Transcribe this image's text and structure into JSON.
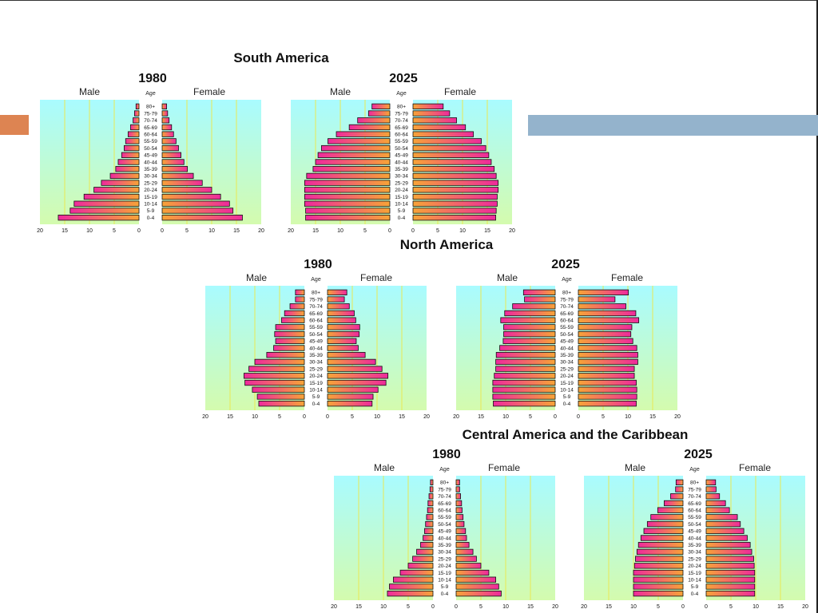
{
  "slide": {
    "accent_left_color": "#dd8452",
    "accent_right_color": "#94b3cc"
  },
  "labels": {
    "male": "Male",
    "female": "Female",
    "age": "Age"
  },
  "age_groups": [
    "0-4",
    "5-9",
    "10-14",
    "15-19",
    "20-24",
    "25-29",
    "30-34",
    "35-39",
    "40-44",
    "45-49",
    "50-54",
    "55-59",
    "60-64",
    "65-69",
    "70-74",
    "75-79",
    "80+"
  ],
  "colors": {
    "plot_top": "#a9fbff",
    "plot_bottom": "#d4fbae",
    "bar_outer": "#ee2a9c",
    "bar_inner": "#f7a437",
    "grid": "#e9e954"
  },
  "regions": [
    {
      "title": "South America"
    },
    {
      "title": "North America"
    },
    {
      "title": "Central America and the Caribbean"
    }
  ],
  "chart_data": [
    {
      "type": "bar",
      "region": "South America",
      "year": "1980",
      "categories": [
        "0-4",
        "5-9",
        "10-14",
        "15-19",
        "20-24",
        "25-29",
        "30-34",
        "35-39",
        "40-44",
        "45-49",
        "50-54",
        "55-59",
        "60-64",
        "65-69",
        "70-74",
        "75-79",
        "80+"
      ],
      "series": [
        {
          "name": "Male",
          "values": [
            16.3,
            13.9,
            13.1,
            11.1,
            9.1,
            7.6,
            5.8,
            4.7,
            4.2,
            3.5,
            3.0,
            2.7,
            2.2,
            1.7,
            1.2,
            0.9,
            0.6
          ]
        },
        {
          "name": "Female",
          "values": [
            16.2,
            14.3,
            13.6,
            11.8,
            10.0,
            8.1,
            6.3,
            5.1,
            4.4,
            3.8,
            3.3,
            2.8,
            2.3,
            1.9,
            1.4,
            1.1,
            0.9
          ]
        }
      ],
      "xlim": [
        0,
        20
      ],
      "x_ticks": [
        "20",
        "15",
        "10",
        "5",
        "0",
        "0",
        "5",
        "10",
        "15",
        "20"
      ]
    },
    {
      "type": "bar",
      "region": "South America",
      "year": "2025",
      "categories": [
        "0-4",
        "5-9",
        "10-14",
        "15-19",
        "20-24",
        "25-29",
        "30-34",
        "35-39",
        "40-44",
        "45-49",
        "50-54",
        "55-59",
        "60-64",
        "65-69",
        "70-74",
        "75-79",
        "80+"
      ],
      "series": [
        {
          "name": "Male",
          "values": [
            17.0,
            17.0,
            17.2,
            17.2,
            17.2,
            17.2,
            16.8,
            15.5,
            15.0,
            14.5,
            13.8,
            12.5,
            10.8,
            8.2,
            6.5,
            4.3,
            3.6
          ]
        },
        {
          "name": "Female",
          "values": [
            16.7,
            16.8,
            17.0,
            17.0,
            17.2,
            17.2,
            16.8,
            16.4,
            15.8,
            15.3,
            14.7,
            13.8,
            12.2,
            10.6,
            8.8,
            7.4,
            6.1
          ]
        }
      ],
      "xlim": [
        0,
        20
      ],
      "x_ticks": [
        "20",
        "15",
        "10",
        "5",
        "0",
        "0",
        "5",
        "10",
        "15",
        "20"
      ]
    },
    {
      "type": "bar",
      "region": "North America",
      "year": "1980",
      "categories": [
        "0-4",
        "5-9",
        "10-14",
        "15-19",
        "20-24",
        "25-29",
        "30-34",
        "35-39",
        "40-44",
        "45-49",
        "50-54",
        "55-59",
        "60-64",
        "65-69",
        "70-74",
        "75-79",
        "80+"
      ],
      "series": [
        {
          "name": "Male",
          "values": [
            9.2,
            9.5,
            10.5,
            12.0,
            12.2,
            11.2,
            10.0,
            7.6,
            6.2,
            5.8,
            6.0,
            5.8,
            4.6,
            4.0,
            2.9,
            1.8,
            1.8
          ]
        },
        {
          "name": "Female",
          "values": [
            9.0,
            9.2,
            10.2,
            11.8,
            12.2,
            11.0,
            9.7,
            7.6,
            6.2,
            5.8,
            6.4,
            6.5,
            5.7,
            5.4,
            4.4,
            3.4,
            3.9
          ]
        }
      ],
      "xlim": [
        0,
        20
      ],
      "x_ticks": [
        "20",
        "15",
        "10",
        "5",
        "0",
        "0",
        "5",
        "10",
        "15",
        "20"
      ]
    },
    {
      "type": "bar",
      "region": "North America",
      "year": "2025",
      "categories": [
        "0-4",
        "5-9",
        "10-14",
        "15-19",
        "20-24",
        "25-29",
        "30-34",
        "35-39",
        "40-44",
        "45-49",
        "50-54",
        "55-59",
        "60-64",
        "65-69",
        "70-74",
        "75-79",
        "80+"
      ],
      "series": [
        {
          "name": "Male",
          "values": [
            12.5,
            12.6,
            12.6,
            12.6,
            12.3,
            12.0,
            12.0,
            11.9,
            11.2,
            10.5,
            10.4,
            10.4,
            11.0,
            10.2,
            8.6,
            6.2,
            6.4
          ]
        },
        {
          "name": "Female",
          "values": [
            11.7,
            11.8,
            11.8,
            11.7,
            11.3,
            11.3,
            12.0,
            12.0,
            11.8,
            11.0,
            10.6,
            10.8,
            12.2,
            11.6,
            9.6,
            7.4,
            10.1
          ]
        }
      ],
      "xlim": [
        0,
        20
      ],
      "x_ticks": [
        "20",
        "15",
        "10",
        "5",
        "0",
        "0",
        "5",
        "10",
        "15",
        "20"
      ]
    },
    {
      "type": "bar",
      "region": "Central America and the Caribbean",
      "year": "1980",
      "categories": [
        "0-4",
        "5-9",
        "10-14",
        "15-19",
        "20-24",
        "25-29",
        "30-34",
        "35-39",
        "40-44",
        "45-49",
        "50-54",
        "55-59",
        "60-64",
        "65-69",
        "70-74",
        "75-79",
        "80+"
      ],
      "series": [
        {
          "name": "Male",
          "values": [
            9.2,
            8.8,
            8.0,
            6.6,
            5.0,
            4.1,
            3.3,
            2.5,
            2.0,
            1.7,
            1.5,
            1.3,
            1.1,
            1.0,
            0.8,
            0.6,
            0.5
          ]
        },
        {
          "name": "Female",
          "values": [
            9.1,
            8.6,
            8.0,
            6.6,
            5.0,
            4.1,
            3.4,
            2.6,
            2.1,
            1.9,
            1.6,
            1.4,
            1.2,
            1.1,
            0.9,
            0.7,
            0.7
          ]
        }
      ],
      "xlim": [
        0,
        20
      ],
      "x_ticks": [
        "20",
        "15",
        "10",
        "5",
        "0",
        "0",
        "5",
        "10",
        "15",
        "20"
      ]
    },
    {
      "type": "bar",
      "region": "Central America and the Caribbean",
      "year": "2025",
      "categories": [
        "0-4",
        "5-9",
        "10-14",
        "15-19",
        "20-24",
        "25-29",
        "30-34",
        "35-39",
        "40-44",
        "45-49",
        "50-54",
        "55-59",
        "60-64",
        "65-69",
        "70-74",
        "75-79",
        "80+"
      ],
      "series": [
        {
          "name": "Male",
          "values": [
            10.0,
            10.0,
            10.0,
            10.0,
            9.8,
            9.6,
            9.3,
            9.0,
            8.5,
            7.9,
            7.2,
            6.5,
            5.1,
            3.8,
            2.5,
            1.5,
            1.4
          ]
        },
        {
          "name": "Female",
          "values": [
            9.8,
            9.8,
            9.8,
            9.8,
            9.7,
            9.6,
            9.2,
            8.9,
            8.3,
            7.6,
            6.9,
            6.3,
            4.7,
            3.9,
            2.7,
            2.0,
            1.9
          ]
        }
      ],
      "xlim": [
        0,
        20
      ],
      "x_ticks": [
        "20",
        "15",
        "10",
        "5",
        "0",
        "0",
        "5",
        "10",
        "15",
        "20"
      ]
    }
  ]
}
